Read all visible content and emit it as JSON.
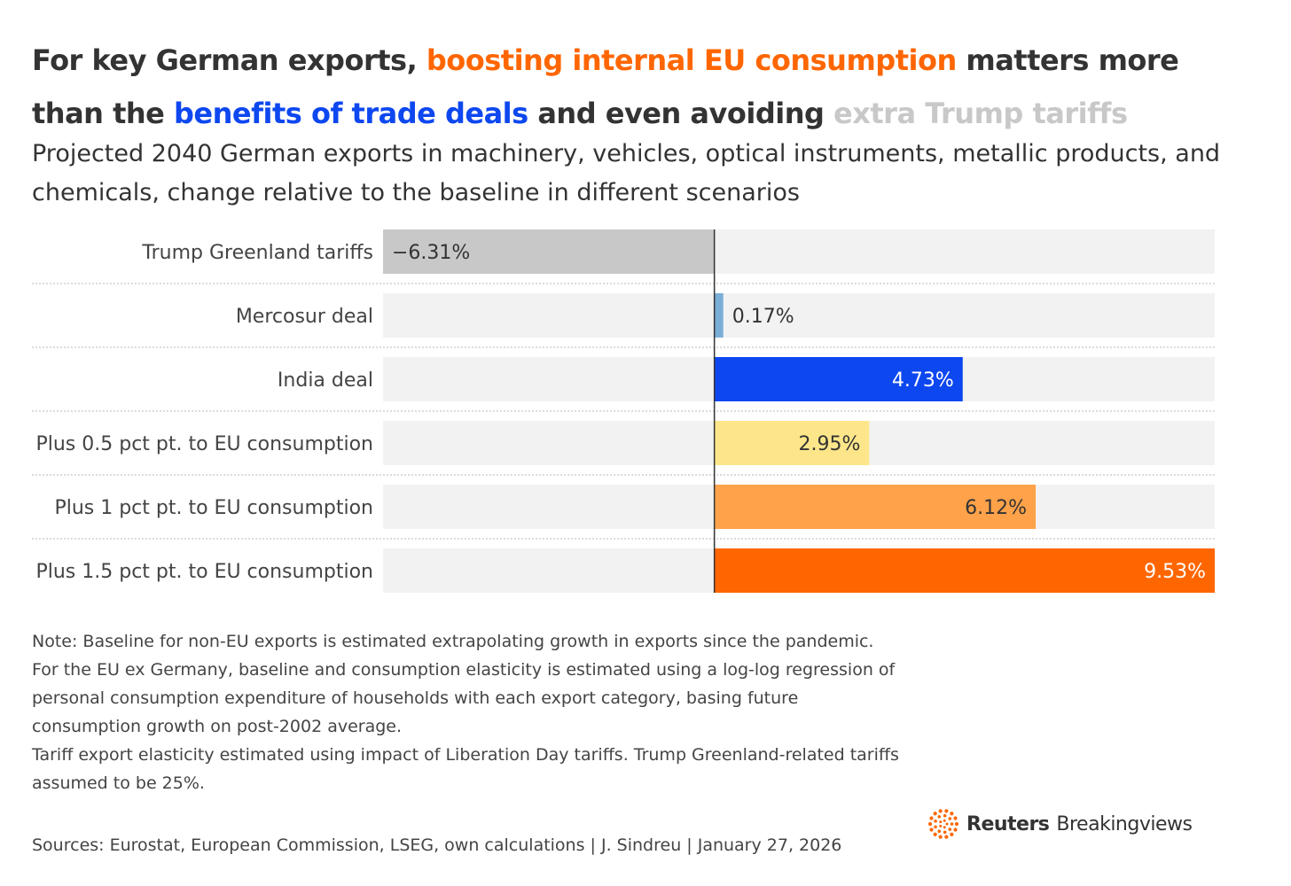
{
  "title": {
    "part1": "For key German exports, ",
    "part2": "boosting internal EU consumption",
    "part3": " matters more than the ",
    "part4": "benefits of trade deals",
    "part5": " and even avoiding ",
    "part6": "extra Trump tariffs"
  },
  "subtitle": "Projected 2040 German exports in machinery, vehicles, optical instruments, metallic products, and chemicals, change relative to the baseline in different scenarios",
  "notes": [
    "Note: Baseline for non-EU exports is estimated extrapolating growth in exports since the pandemic.",
    "For the EU ex Germany, baseline and consumption elasticity is estimated using a log-log regression of personal consumption expenditure of households with each export category, basing future consumption growth on post-2002 average.",
    "Tariff export elasticity estimated using impact of Liberation Day tariffs. Trump Greenland-related tariffs assumed to be 25%."
  ],
  "sources": "Sources: Eurostat, European Commission, LSEG, own calculations | J. Sindreu | January 27, 2026",
  "logo": {
    "brand": "Reuters",
    "product": "Breakingviews"
  },
  "colors": {
    "orange": "#ff6600",
    "blue": "#0d47f0",
    "grey_title": "#c8c8c8",
    "track": "#f2f2f2"
  },
  "chart_data": {
    "type": "bar",
    "orientation": "horizontal",
    "categories": [
      "Trump Greenland tariffs",
      "Mercosur deal",
      "India deal",
      "Plus 0.5 pct pt. to EU consumption",
      "Plus 1 pct pt. to EU consumption",
      "Plus 1.5 pct pt. to EU consumption"
    ],
    "values": [
      -6.31,
      0.17,
      4.73,
      2.95,
      6.12,
      9.53
    ],
    "labels": [
      "−6.31%",
      "0.17%",
      "4.73%",
      "2.95%",
      "6.12%",
      "9.53%"
    ],
    "bar_colors": [
      "#c8c8c8",
      "#7aaed6",
      "#0d47f0",
      "#fde68a",
      "#ffa24a",
      "#ff6600"
    ],
    "label_colors": [
      "#333333",
      "#333333",
      "#ffffff",
      "#333333",
      "#333333",
      "#ffffff"
    ],
    "xlim": [
      -6.31,
      9.53
    ],
    "unit": "%"
  }
}
